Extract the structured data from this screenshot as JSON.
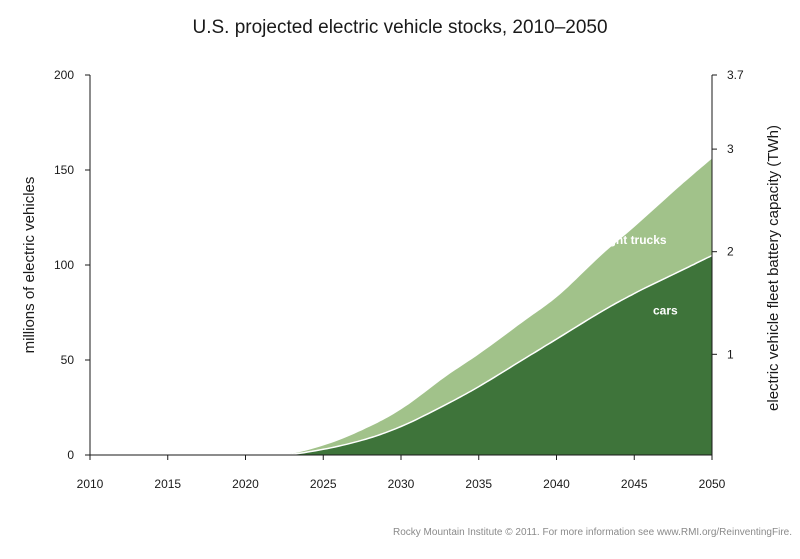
{
  "chart_data": {
    "type": "area",
    "stacked": true,
    "title": "U.S. projected electric vehicle stocks, 2010–2050",
    "ylabel": "millions of electric vehicles",
    "y2label": "electric vehicle fleet battery capacity (TWh)",
    "x_ticks": [
      "2010",
      "2015",
      "2020",
      "2025",
      "2030",
      "2035",
      "2040",
      "2045",
      "2050"
    ],
    "xlim": [
      2010,
      2050
    ],
    "y_ticks": [
      "0",
      "50",
      "100",
      "150",
      "200"
    ],
    "ylim": [
      0,
      200
    ],
    "y2_ticks": [
      {
        "label": "1",
        "value": 53
      },
      {
        "label": "2",
        "value": 107
      },
      {
        "label": "3",
        "value": 161
      },
      {
        "label": "3.7",
        "value": 200
      }
    ],
    "grid": false,
    "x": [
      2010,
      2022,
      2025,
      2028,
      2030,
      2033,
      2035,
      2038,
      2040,
      2043,
      2045,
      2048,
      2050
    ],
    "series": [
      {
        "name": "cars",
        "color": "#3e743a",
        "values": [
          0,
          0,
          3,
          9,
          15,
          27,
          36,
          51,
          61,
          76,
          85,
          97,
          105
        ]
      },
      {
        "name": "light trucks",
        "color": "#a1c28a",
        "values": [
          0,
          0,
          2,
          6,
          9,
          15,
          17,
          20,
          22,
          30,
          35,
          45,
          51
        ]
      }
    ],
    "annotations": [
      {
        "text": "light trucks",
        "x": 2045,
        "y": 111
      },
      {
        "text": "cars",
        "x": 2047,
        "y": 74
      }
    ]
  },
  "footer": {
    "credit": "Rocky Mountain Institute © 2011. For more information see www.RMI.org/ReinventingFire."
  }
}
